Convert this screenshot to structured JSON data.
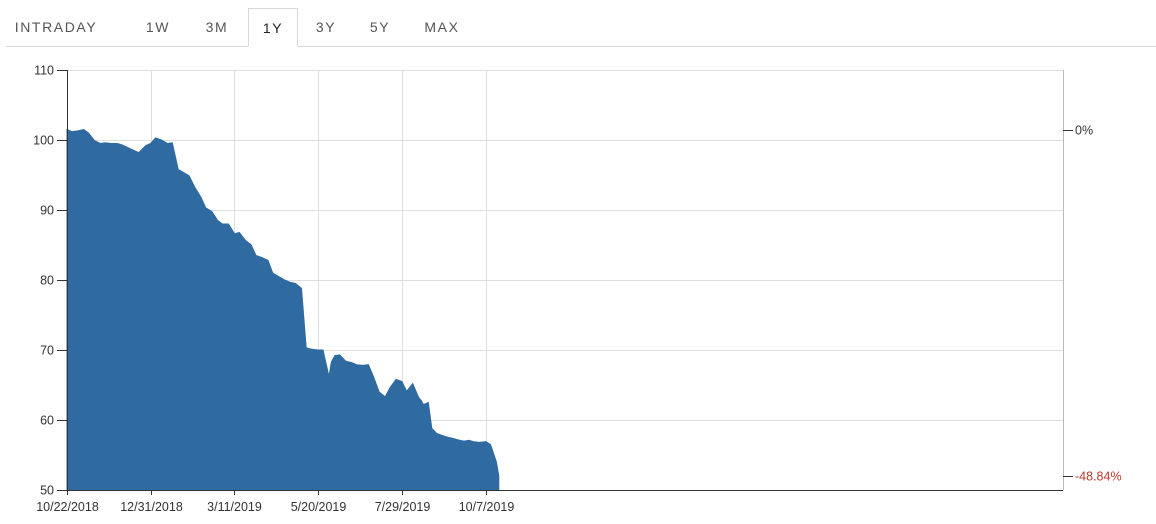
{
  "tabs": [
    {
      "label": "INTRADAY",
      "active": false
    },
    {
      "label": "1W",
      "active": false
    },
    {
      "label": "3M",
      "active": false
    },
    {
      "label": "1Y",
      "active": true
    },
    {
      "label": "3Y",
      "active": false
    },
    {
      "label": "5Y",
      "active": false
    },
    {
      "label": "MAX",
      "active": false
    }
  ],
  "colors": {
    "area_fill": "#2f6aa0",
    "grid": "#dddddd",
    "axis": "#333333",
    "negative_pct": "#c0392b",
    "tab_border": "#d8d8d8"
  },
  "chart_data": {
    "type": "area",
    "title": "",
    "xlabel": "",
    "ylabel": "",
    "ylim": [
      50,
      110
    ],
    "yticks": [
      50,
      60,
      70,
      80,
      90,
      100,
      110
    ],
    "x_tick_labels": [
      "10/22/2018",
      "12/31/2018",
      "3/11/2019",
      "5/20/2019",
      "7/29/2019",
      "10/7/2019"
    ],
    "grid": true,
    "right_axis": [
      {
        "label": "0%",
        "value": 101.5,
        "negative": false
      },
      {
        "label": "-48.84%",
        "value": 52.0,
        "negative": true
      }
    ],
    "series": [
      {
        "x": [
          "10/22/2018",
          "10/26/2018",
          "10/31/2018",
          "11/5/2018",
          "11/9/2018",
          "11/14/2018",
          "11/19/2018",
          "11/23/2018",
          "11/28/2018",
          "12/3/2018",
          "12/7/2018",
          "12/12/2018",
          "12/17/2018",
          "12/21/2018",
          "12/27/2018",
          "12/31/2018",
          "1/4/2019",
          "1/9/2019",
          "1/14/2019",
          "1/18/2019",
          "1/23/2019",
          "1/28/2019",
          "2/1/2019",
          "2/6/2019",
          "2/11/2019",
          "2/15/2019",
          "2/20/2019",
          "2/25/2019",
          "3/1/2019",
          "3/6/2019",
          "3/11/2019",
          "3/15/2019",
          "3/20/2019",
          "3/25/2019",
          "3/29/2019",
          "4/3/2019",
          "4/8/2019",
          "4/12/2019",
          "4/17/2019",
          "4/22/2019",
          "4/26/2019",
          "5/1/2019",
          "5/6/2019",
          "5/10/2019",
          "5/15/2019",
          "5/20/2019",
          "5/24/2019",
          "5/29/2019",
          "5/31/2019",
          "6/3/2019",
          "6/7/2019",
          "6/12/2019",
          "6/17/2019",
          "6/21/2019",
          "6/26/2019",
          "7/1/2019",
          "7/5/2019",
          "7/10/2019",
          "7/15/2019",
          "7/19/2019",
          "7/24/2019",
          "7/29/2019",
          "8/2/2019",
          "8/7/2019",
          "8/12/2019",
          "8/14/2019",
          "8/16/2019",
          "8/20/2019",
          "8/23/2019",
          "8/27/2019",
          "8/30/2019",
          "9/4/2019",
          "9/9/2019",
          "9/13/2019",
          "9/18/2019",
          "9/20/2019",
          "9/23/2019",
          "9/27/2019",
          "10/2/2019",
          "10/7/2019",
          "10/11/2019",
          "10/16/2019",
          "10/18/2019"
        ],
        "values": [
          101.5,
          101.2,
          101.3,
          101.5,
          101.0,
          99.9,
          99.5,
          99.6,
          99.5,
          99.5,
          99.3,
          98.9,
          98.5,
          98.2,
          99.2,
          99.5,
          100.3,
          100.0,
          99.5,
          99.6,
          95.8,
          95.3,
          94.9,
          93.2,
          91.8,
          90.3,
          89.8,
          88.5,
          88.0,
          88.0,
          86.6,
          86.8,
          85.7,
          85.0,
          83.5,
          83.2,
          82.8,
          81.0,
          80.5,
          80.0,
          79.7,
          79.5,
          78.8,
          70.3,
          70.1,
          70.0,
          70.0,
          66.2,
          68.3,
          69.2,
          69.3,
          68.4,
          68.2,
          67.9,
          67.8,
          67.9,
          66.3,
          64.0,
          63.3,
          64.6,
          65.8,
          65.5,
          64.1,
          65.2,
          63.2,
          62.8,
          62.2,
          62.5,
          58.8,
          58.1,
          57.9,
          57.6,
          57.4,
          57.2,
          57.0,
          57.0,
          57.1,
          56.9,
          56.8,
          56.9,
          56.5,
          54.0,
          52.0
        ]
      }
    ]
  }
}
